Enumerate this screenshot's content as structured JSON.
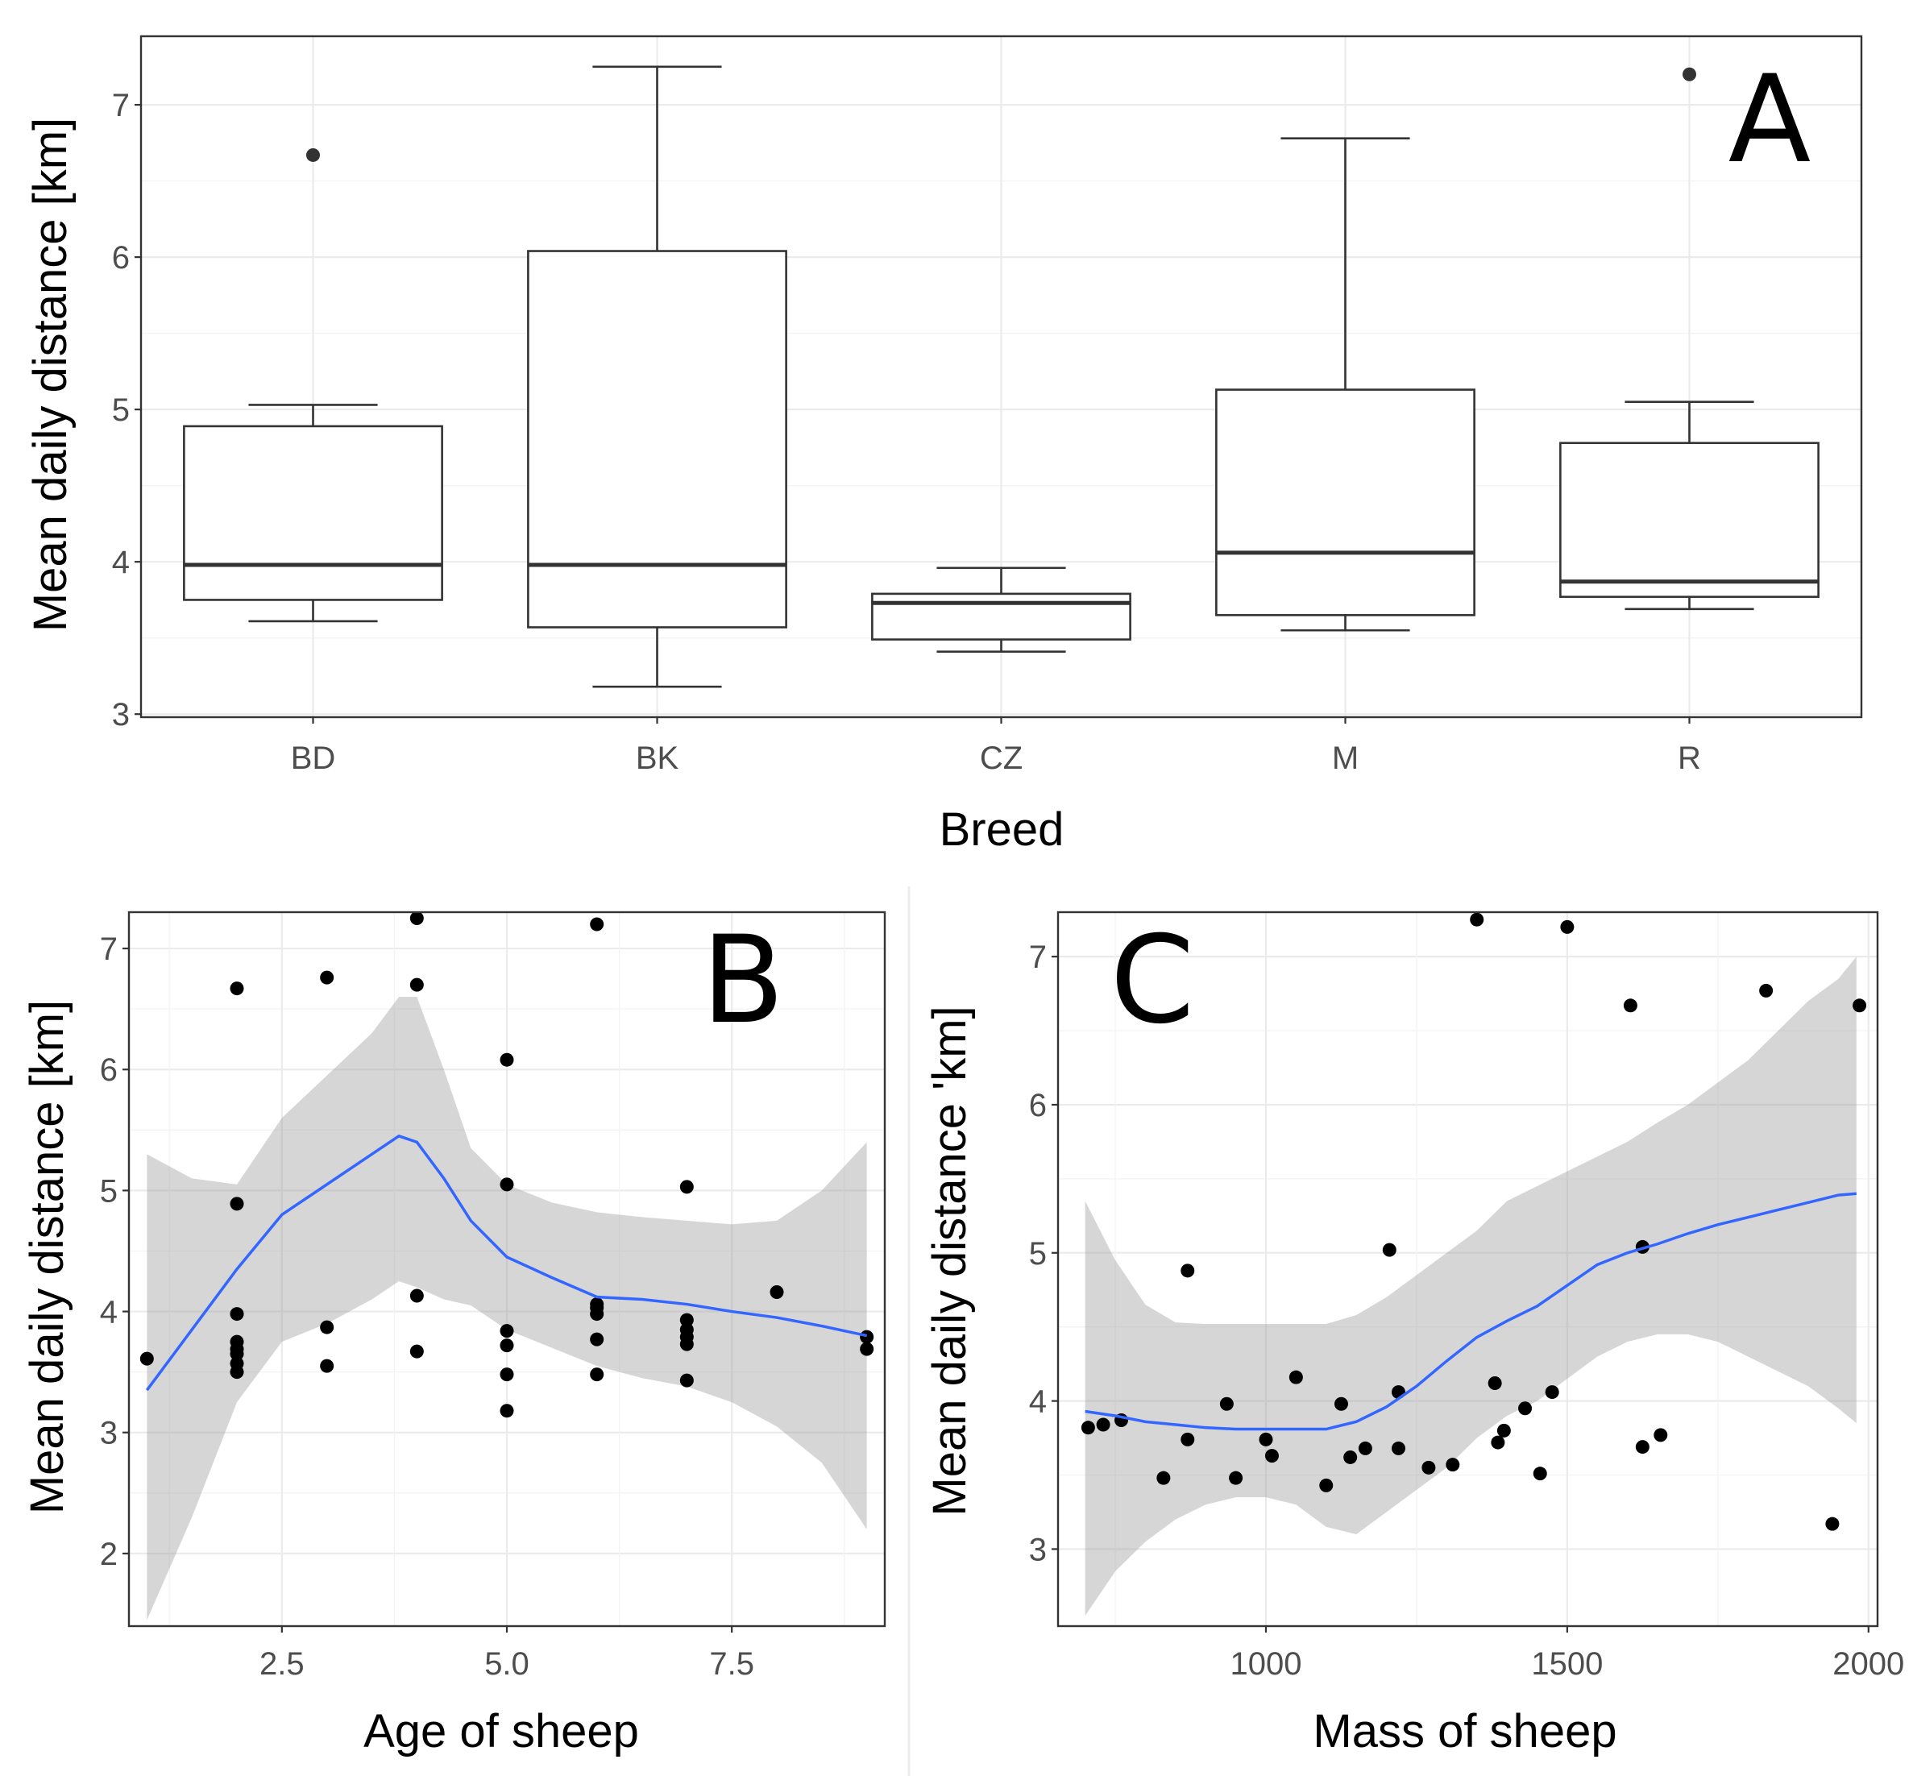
{
  "chart_data": [
    {
      "panel": "A",
      "type": "boxplot",
      "xlabel": "Breed",
      "ylabel": "Mean daily distance [km]",
      "ylim": [
        2.98,
        7.45
      ],
      "yticks": [
        3,
        4,
        5,
        6,
        7
      ],
      "categories": [
        "BD",
        "BK",
        "CZ",
        "M",
        "R"
      ],
      "boxes": [
        {
          "category": "BD",
          "lower_whisker": 3.61,
          "q1": 3.75,
          "median": 3.98,
          "q3": 4.89,
          "upper_whisker": 5.03,
          "outliers": [
            6.67
          ]
        },
        {
          "category": "BK",
          "lower_whisker": 3.18,
          "q1": 3.57,
          "median": 3.98,
          "q3": 6.04,
          "upper_whisker": 7.25,
          "outliers": []
        },
        {
          "category": "CZ",
          "lower_whisker": 3.41,
          "q1": 3.49,
          "median": 3.73,
          "q3": 3.79,
          "upper_whisker": 3.96,
          "outliers": []
        },
        {
          "category": "M",
          "lower_whisker": 3.55,
          "q1": 3.65,
          "median": 4.06,
          "q3": 5.13,
          "upper_whisker": 6.78,
          "outliers": []
        },
        {
          "category": "R",
          "lower_whisker": 3.69,
          "q1": 3.77,
          "median": 3.87,
          "q3": 4.78,
          "upper_whisker": 5.05,
          "outliers": [
            7.2
          ]
        }
      ]
    },
    {
      "panel": "B",
      "type": "scatter",
      "xlabel": "Age of sheep",
      "ylabel": "Mean daily distance [km]",
      "xlim": [
        0.8,
        9.2
      ],
      "ylim": [
        1.4,
        7.3
      ],
      "xticks": [
        2.5,
        5.0,
        7.5
      ],
      "xtick_labels": [
        "2.5",
        "5.0",
        "7.5"
      ],
      "yticks": [
        2,
        3,
        4,
        5,
        6,
        7
      ],
      "points": [
        [
          1,
          3.61
        ],
        [
          2,
          6.67
        ],
        [
          2,
          4.89
        ],
        [
          2,
          3.98
        ],
        [
          2,
          3.75
        ],
        [
          2,
          3.69
        ],
        [
          2,
          3.65
        ],
        [
          2,
          3.57
        ],
        [
          2,
          3.5
        ],
        [
          3,
          6.76
        ],
        [
          3,
          3.87
        ],
        [
          3,
          3.55
        ],
        [
          4,
          7.25
        ],
        [
          4,
          6.7
        ],
        [
          4,
          4.13
        ],
        [
          4,
          3.67
        ],
        [
          5,
          6.08
        ],
        [
          5,
          5.05
        ],
        [
          5,
          3.84
        ],
        [
          5,
          3.72
        ],
        [
          5,
          3.48
        ],
        [
          5,
          3.18
        ],
        [
          6,
          7.2
        ],
        [
          6,
          4.06
        ],
        [
          6,
          4.03
        ],
        [
          6,
          3.98
        ],
        [
          6,
          3.77
        ],
        [
          6,
          3.48
        ],
        [
          7,
          5.03
        ],
        [
          7,
          3.93
        ],
        [
          7,
          3.85
        ],
        [
          7,
          3.79
        ],
        [
          7,
          3.73
        ],
        [
          7,
          3.43
        ],
        [
          8,
          4.16
        ],
        [
          9,
          3.79
        ],
        [
          9,
          3.69
        ]
      ],
      "smooth": {
        "x": [
          1.0,
          1.5,
          2.0,
          2.5,
          3.0,
          3.5,
          3.8,
          4.0,
          4.3,
          4.6,
          5.0,
          5.5,
          6.0,
          6.5,
          7.0,
          7.5,
          8.0,
          8.5,
          9.0
        ],
        "fit": [
          3.35,
          3.85,
          4.35,
          4.8,
          5.05,
          5.3,
          5.45,
          5.4,
          5.1,
          4.75,
          4.45,
          4.28,
          4.12,
          4.1,
          4.06,
          4.0,
          3.95,
          3.88,
          3.8
        ],
        "lower": [
          1.45,
          2.3,
          3.25,
          3.75,
          3.9,
          4.1,
          4.25,
          4.2,
          4.1,
          4.05,
          3.85,
          3.7,
          3.55,
          3.45,
          3.38,
          3.25,
          3.05,
          2.75,
          2.2
        ],
        "upper": [
          5.3,
          5.1,
          5.05,
          5.6,
          5.95,
          6.3,
          6.6,
          6.6,
          6.0,
          5.35,
          5.05,
          4.9,
          4.82,
          4.78,
          4.75,
          4.72,
          4.75,
          5.0,
          5.4
        ]
      }
    },
    {
      "panel": "C",
      "type": "scatter",
      "xlabel": "Mass of sheep",
      "ylabel": "Mean daily distance 'km]",
      "xlim": [
        655,
        2015
      ],
      "ylim": [
        2.48,
        7.3
      ],
      "xticks": [
        1000,
        1500,
        2000
      ],
      "xtick_labels": [
        "1000",
        "1500",
        "2000"
      ],
      "yticks": [
        3,
        4,
        5,
        6,
        7
      ],
      "points": [
        [
          705,
          3.82
        ],
        [
          730,
          3.84
        ],
        [
          760,
          3.87
        ],
        [
          830,
          3.48
        ],
        [
          870,
          4.88
        ],
        [
          870,
          3.74
        ],
        [
          935,
          3.98
        ],
        [
          950,
          3.48
        ],
        [
          1000,
          3.74
        ],
        [
          1010,
          3.63
        ],
        [
          1050,
          4.16
        ],
        [
          1100,
          3.43
        ],
        [
          1125,
          3.98
        ],
        [
          1140,
          3.62
        ],
        [
          1165,
          3.68
        ],
        [
          1205,
          5.02
        ],
        [
          1220,
          4.06
        ],
        [
          1220,
          3.68
        ],
        [
          1270,
          3.55
        ],
        [
          1310,
          3.57
        ],
        [
          1350,
          7.25
        ],
        [
          1380,
          4.12
        ],
        [
          1385,
          3.72
        ],
        [
          1395,
          3.8
        ],
        [
          1430,
          3.95
        ],
        [
          1455,
          3.51
        ],
        [
          1475,
          4.06
        ],
        [
          1500,
          7.2
        ],
        [
          1605,
          6.67
        ],
        [
          1625,
          5.04
        ],
        [
          1625,
          3.69
        ],
        [
          1655,
          3.77
        ],
        [
          1830,
          6.77
        ],
        [
          1940,
          3.17
        ],
        [
          1985,
          6.67
        ]
      ],
      "smooth": {
        "x": [
          700,
          750,
          800,
          850,
          900,
          950,
          1000,
          1050,
          1100,
          1150,
          1200,
          1250,
          1300,
          1350,
          1400,
          1450,
          1500,
          1550,
          1600,
          1650,
          1700,
          1750,
          1800,
          1850,
          1900,
          1950,
          1980
        ],
        "fit": [
          3.93,
          3.9,
          3.86,
          3.84,
          3.82,
          3.81,
          3.81,
          3.81,
          3.81,
          3.86,
          3.96,
          4.1,
          4.27,
          4.43,
          4.54,
          4.64,
          4.78,
          4.92,
          5.0,
          5.06,
          5.13,
          5.19,
          5.24,
          5.29,
          5.34,
          5.39,
          5.4
        ],
        "lower": [
          2.55,
          2.85,
          3.05,
          3.2,
          3.3,
          3.35,
          3.35,
          3.3,
          3.15,
          3.1,
          3.25,
          3.4,
          3.55,
          3.75,
          3.9,
          4.0,
          4.15,
          4.3,
          4.4,
          4.45,
          4.45,
          4.4,
          4.3,
          4.2,
          4.1,
          3.95,
          3.85
        ],
        "upper": [
          5.35,
          4.95,
          4.65,
          4.53,
          4.52,
          4.52,
          4.52,
          4.52,
          4.52,
          4.58,
          4.7,
          4.85,
          5.0,
          5.15,
          5.35,
          5.45,
          5.55,
          5.65,
          5.75,
          5.88,
          6.0,
          6.15,
          6.3,
          6.5,
          6.7,
          6.85,
          7.0
        ]
      }
    }
  ]
}
